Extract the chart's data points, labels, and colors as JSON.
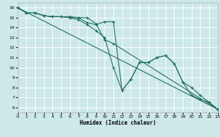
{
  "xlabel": "Humidex (Indice chaleur)",
  "background_color": "#cce8e8",
  "grid_color": "#ffffff",
  "line_color": "#1a6b5a",
  "xlim": [
    0,
    23
  ],
  "ylim": [
    5.5,
    16.5
  ],
  "xticks": [
    0,
    1,
    2,
    3,
    4,
    5,
    6,
    7,
    8,
    9,
    10,
    11,
    12,
    13,
    14,
    15,
    16,
    17,
    18,
    19,
    20,
    21,
    22,
    23
  ],
  "yticks": [
    6,
    7,
    8,
    9,
    10,
    11,
    12,
    13,
    14,
    15,
    16
  ],
  "lines": [
    {
      "x": [
        0,
        23
      ],
      "y": [
        16.0,
        5.8
      ]
    },
    {
      "x": [
        0,
        1,
        2,
        3,
        4,
        5,
        6,
        7,
        8,
        9,
        10,
        11,
        23
      ],
      "y": [
        16.0,
        15.5,
        15.5,
        15.2,
        15.1,
        15.1,
        15.1,
        15.0,
        15.0,
        14.4,
        12.8,
        12.4,
        5.8
      ]
    },
    {
      "x": [
        0,
        1,
        2,
        3,
        4,
        5,
        6,
        7,
        8,
        9,
        10,
        11,
        12,
        13,
        14,
        15,
        16,
        17,
        18,
        19,
        20,
        21,
        22,
        23
      ],
      "y": [
        16.0,
        15.5,
        15.5,
        15.2,
        15.1,
        15.1,
        15.0,
        15.0,
        14.5,
        14.3,
        14.6,
        14.6,
        7.7,
        8.8,
        10.5,
        10.5,
        11.0,
        11.2,
        10.4,
        8.5,
        7.2,
        6.8,
        6.5,
        5.8
      ]
    },
    {
      "x": [
        0,
        1,
        2,
        3,
        4,
        5,
        6,
        7,
        8,
        9,
        10,
        11,
        12,
        13,
        14,
        15,
        16,
        17,
        18,
        19,
        20,
        21,
        22,
        23
      ],
      "y": [
        16.0,
        15.5,
        15.5,
        15.2,
        15.1,
        15.1,
        15.0,
        14.8,
        14.3,
        13.7,
        13.0,
        10.0,
        7.7,
        8.8,
        10.5,
        10.5,
        11.0,
        11.2,
        10.4,
        8.5,
        8.0,
        7.2,
        6.5,
        5.8
      ]
    }
  ]
}
